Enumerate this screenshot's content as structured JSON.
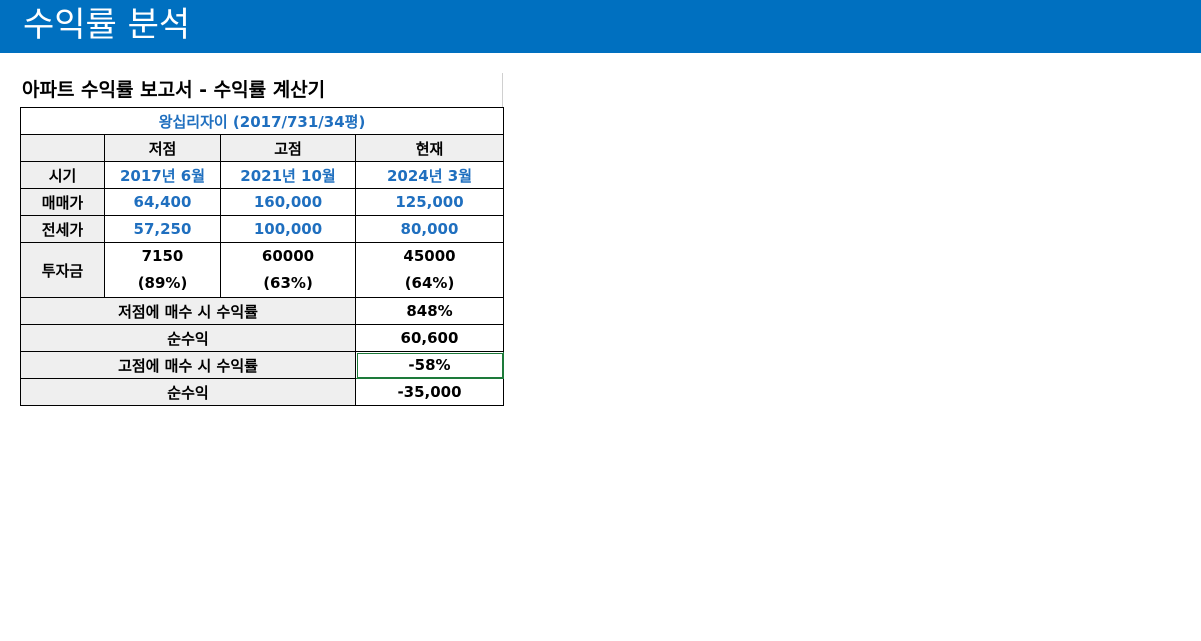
{
  "header": {
    "title": "수익률 분석",
    "color": "#0070c0"
  },
  "report": {
    "title": "아파트 수익률 보고서 - 수익률 계산기",
    "apartment": "왕십리자이 (2017/731/34평)",
    "columns": [
      "",
      "저점",
      "고점",
      "현재"
    ],
    "rows": {
      "period": {
        "label": "시기",
        "values": [
          "2017년 6월",
          "2021년 10월",
          "2024년 3월"
        ]
      },
      "sale_price": {
        "label": "매매가",
        "values": [
          "64,400",
          "160,000",
          "125,000"
        ]
      },
      "jeonse_price": {
        "label": "전세가",
        "values": [
          "57,250",
          "100,000",
          "80,000"
        ]
      },
      "investment": {
        "label": "투자금",
        "amounts": [
          "7150",
          "60000",
          "45000"
        ],
        "ratios": [
          "(89%)",
          "(63%)",
          "(64%)"
        ]
      }
    },
    "summary": [
      {
        "label": "저점에 매수 시 수익률",
        "value": "848%"
      },
      {
        "label": "순수익",
        "value": "60,600"
      },
      {
        "label": "고점에 매수 시 수익률",
        "value": "-58%"
      },
      {
        "label": "순수익",
        "value": "-35,000"
      }
    ],
    "accent_color": "#1f6fbf"
  }
}
